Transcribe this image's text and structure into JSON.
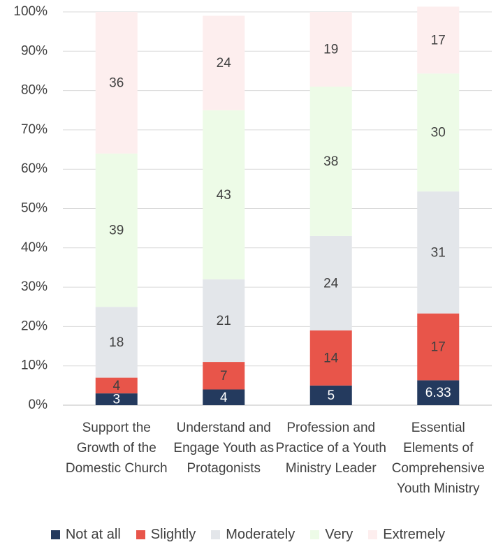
{
  "chart_data": {
    "type": "stacked_bar",
    "categories": [
      "Support the Growth of the Domestic Church",
      "Understand and Engage Youth as Protagonists",
      "Profession and Practice of a Youth Ministry Leader",
      "Essential Elements of Comprehensive Youth Ministry"
    ],
    "series": [
      {
        "name": "Not at all",
        "color": "#243a5e",
        "values": [
          3,
          4,
          5,
          6.33
        ]
      },
      {
        "name": "Slightly",
        "color": "#e8554a",
        "values": [
          4,
          7,
          14,
          17
        ]
      },
      {
        "name": "Moderately",
        "color": "#e3e6ea",
        "values": [
          18,
          21,
          24,
          31
        ]
      },
      {
        "name": "Very",
        "color": "#edfbe7",
        "values": [
          39,
          43,
          38,
          30
        ]
      },
      {
        "name": "Extremely",
        "color": "#fdeeee",
        "values": [
          36,
          24,
          19,
          17
        ]
      }
    ],
    "ylim": [
      0,
      100
    ],
    "yticks": [
      {
        "value": 0,
        "label": "0%"
      },
      {
        "value": 10,
        "label": "10%"
      },
      {
        "value": 20,
        "label": "20%"
      },
      {
        "value": 30,
        "label": "30%"
      },
      {
        "value": 40,
        "label": "40%"
      },
      {
        "value": 50,
        "label": "50%"
      },
      {
        "value": 60,
        "label": "60%"
      },
      {
        "value": 70,
        "label": "70%"
      },
      {
        "value": 80,
        "label": "80%"
      },
      {
        "value": 90,
        "label": "90%"
      },
      {
        "value": 100,
        "label": "100%"
      }
    ],
    "grid": true,
    "legend": "bottom"
  }
}
